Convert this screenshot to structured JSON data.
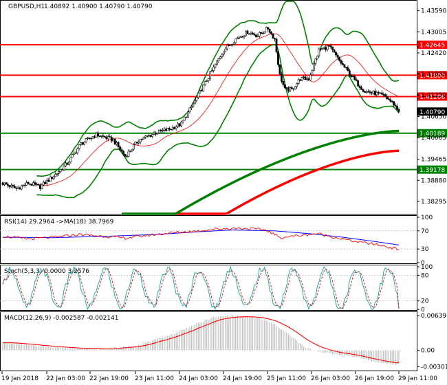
{
  "chart_data": {
    "type": "candlestick",
    "symbol": "GBPUSD,H1",
    "ohlc_text": "1.40892 1.40900 1.40790 1.40790",
    "price_axis": {
      "ylim": [
        1.3795,
        1.4385
      ],
      "ticks": [
        "1.43590",
        "1.43005",
        "1.42420",
        "1.41835",
        "1.41250",
        "1.40650",
        "1.40065",
        "1.39465",
        "1.38880",
        "1.38295"
      ],
      "tick_values": [
        1.4359,
        1.43005,
        1.4242,
        1.41835,
        1.4125,
        1.4065,
        1.40065,
        1.39465,
        1.3888,
        1.38295
      ]
    },
    "x_labels": [
      "19 Jan 2018",
      "22 Jan 03:00",
      "22 Jan 19:00",
      "23 Jan 11:00",
      "24 Jan 03:00",
      "24 Jan 19:00",
      "25 Jan 11:00",
      "26 Jan 03:00",
      "26 Jan 19:00",
      "29 Jan 11:00"
    ],
    "horizontal_levels": [
      {
        "value": 1.42645,
        "label": "1.42645",
        "color": "#ff0000"
      },
      {
        "value": 1.418,
        "label": "1.41800",
        "color": "#ff0000"
      },
      {
        "value": 1.41206,
        "label": "1.41206",
        "color": "#ff0000"
      },
      {
        "value": 1.40189,
        "label": "1.40189",
        "color": "#008000"
      },
      {
        "value": 1.39178,
        "label": "1.39178",
        "color": "#008000"
      }
    ],
    "current_price": {
      "value": 1.4079,
      "label": "1.40790"
    },
    "anchors_close": [
      [
        0,
        1.388
      ],
      [
        8,
        1.3865
      ],
      [
        15,
        1.388
      ],
      [
        22,
        1.387
      ],
      [
        30,
        1.39
      ],
      [
        38,
        1.3935
      ],
      [
        46,
        1.399
      ],
      [
        55,
        1.4015
      ],
      [
        65,
        1.4
      ],
      [
        72,
        1.3955
      ],
      [
        80,
        1.4
      ],
      [
        90,
        1.402
      ],
      [
        98,
        1.403
      ],
      [
        105,
        1.4045
      ],
      [
        112,
        1.41
      ],
      [
        118,
        1.415
      ],
      [
        124,
        1.42
      ],
      [
        130,
        1.425
      ],
      [
        137,
        1.428
      ],
      [
        144,
        1.43
      ],
      [
        150,
        1.429
      ],
      [
        156,
        1.431
      ],
      [
        160,
        1.428
      ],
      [
        163,
        1.418
      ],
      [
        166,
        1.414
      ],
      [
        170,
        1.414
      ],
      [
        175,
        1.417
      ],
      [
        180,
        1.417
      ],
      [
        186,
        1.425
      ],
      [
        192,
        1.426
      ],
      [
        198,
        1.422
      ],
      [
        203,
        1.419
      ],
      [
        208,
        1.416
      ],
      [
        213,
        1.4135
      ],
      [
        219,
        1.413
      ],
      [
        225,
        1.412
      ],
      [
        230,
        1.41
      ],
      [
        233,
        1.4079
      ]
    ],
    "moving_averages": [
      {
        "name": "SMA200",
        "color": "#ff0000",
        "from": [
          100,
          1.37
        ],
        "to": [
          233,
          1.397
        ]
      },
      {
        "name": "SMA100",
        "color": "#008000",
        "from": [
          70,
          1.37
        ],
        "to": [
          233,
          1.4025
        ]
      }
    ],
    "bollinger": {
      "color": "#008000",
      "period": 20,
      "deviation": 2
    },
    "rsi": {
      "title": "RSI(14) 29.2964  ->MA(18) 38.7969",
      "ylim": [
        0,
        100
      ],
      "ticks": [
        "100",
        "70",
        "30",
        "0"
      ],
      "tick_values": [
        100,
        70,
        30,
        0
      ],
      "line_color": "#ff0000",
      "ma_color": "#0000ff",
      "last_value": 29.2964,
      "ma_value": 38.7969,
      "anchors": [
        [
          0,
          58
        ],
        [
          15,
          52
        ],
        [
          30,
          56
        ],
        [
          45,
          62
        ],
        [
          60,
          58
        ],
        [
          72,
          54
        ],
        [
          85,
          60
        ],
        [
          100,
          66
        ],
        [
          115,
          70
        ],
        [
          125,
          74
        ],
        [
          140,
          76
        ],
        [
          155,
          72
        ],
        [
          163,
          55
        ],
        [
          170,
          58
        ],
        [
          185,
          64
        ],
        [
          195,
          56
        ],
        [
          208,
          46
        ],
        [
          220,
          40
        ],
        [
          233,
          29.3
        ]
      ],
      "ma_anchors": [
        [
          0,
          56
        ],
        [
          30,
          55
        ],
        [
          60,
          58
        ],
        [
          90,
          62
        ],
        [
          115,
          68
        ],
        [
          135,
          72
        ],
        [
          160,
          70
        ],
        [
          180,
          64
        ],
        [
          200,
          56
        ],
        [
          220,
          46
        ],
        [
          233,
          38.8
        ]
      ]
    },
    "stochastic": {
      "title": "Stoch(5,3,3) 0.0000 3.2576",
      "ylim": [
        0,
        100
      ],
      "ticks": [
        "100",
        "80",
        "20",
        "0"
      ],
      "tick_values": [
        100,
        80,
        20,
        0
      ],
      "k_color": "#00aaaa",
      "d_color": "#ff0000",
      "k_value": 0.0,
      "d_value": 3.2576
    },
    "macd": {
      "title": "MACD(12,26,9) -0.002587 -0.002141",
      "ylim": [
        -0.0036,
        0.0068
      ],
      "ticks": [
        "0.006397",
        "0.00",
        "-0.003015"
      ],
      "tick_values": [
        0.006397,
        0.0,
        -0.003015
      ],
      "histogram_color": "#c0c0c0",
      "signal_color": "#ff0000",
      "macd_value": -0.002587,
      "signal_value": -0.002141,
      "anchors": [
        [
          0,
          0.0015
        ],
        [
          20,
          0.0008
        ],
        [
          40,
          0.0004
        ],
        [
          60,
          0.0002
        ],
        [
          80,
          0.001
        ],
        [
          100,
          0.003
        ],
        [
          115,
          0.005
        ],
        [
          125,
          0.0062
        ],
        [
          135,
          0.0064
        ],
        [
          150,
          0.006
        ],
        [
          160,
          0.0048
        ],
        [
          168,
          0.003
        ],
        [
          178,
          0.0005
        ],
        [
          190,
          -0.0005
        ],
        [
          205,
          -0.001
        ],
        [
          220,
          -0.0022
        ],
        [
          233,
          -0.0027
        ]
      ]
    }
  }
}
